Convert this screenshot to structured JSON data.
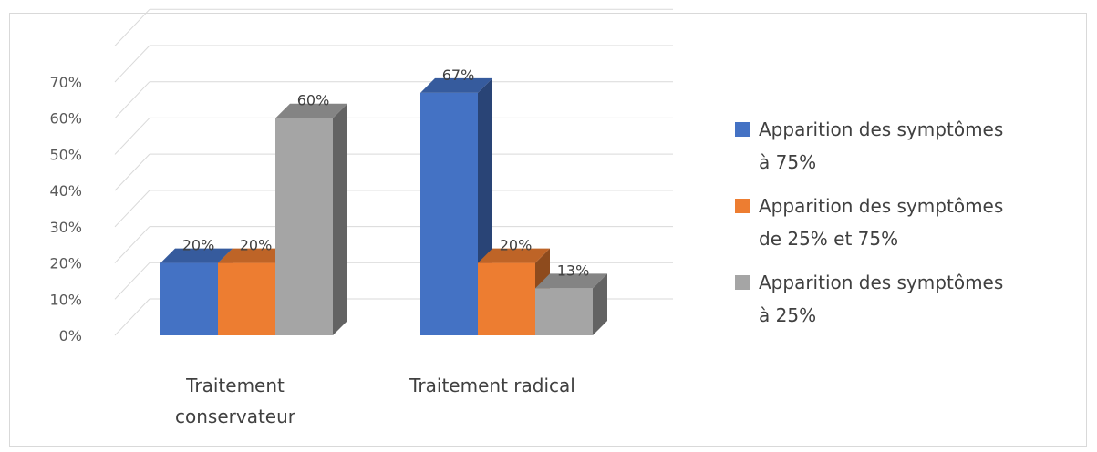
{
  "chart_data": {
    "type": "bar",
    "categories": [
      "Traitement\nconservateur",
      "Traitement radical"
    ],
    "series": [
      {
        "name": "Apparition des symptômes à 75%",
        "values": [
          20,
          67
        ],
        "labels": [
          "20%",
          "67%"
        ],
        "color": "#4472c4"
      },
      {
        "name": "Apparition des symptômes de 25% et 75%",
        "values": [
          20,
          20
        ],
        "labels": [
          "20%",
          "20%"
        ],
        "color": "#ed7d31"
      },
      {
        "name": "Apparition des symptômes à 25%",
        "values": [
          60,
          13
        ],
        "labels": [
          "60%",
          "13%"
        ],
        "color": "#a5a5a5"
      }
    ],
    "y_ticks": [
      "0%",
      "10%",
      "20%",
      "30%",
      "40%",
      "50%",
      "60%",
      "70%"
    ],
    "ylim": [
      0,
      80
    ],
    "grid": true,
    "legend_position": "right",
    "title": "",
    "xlabel": "",
    "ylabel": ""
  },
  "legend": {
    "items": [
      {
        "line1": "Apparition des symptômes",
        "line2": "à 75%",
        "color": "#4472c4"
      },
      {
        "line1": "Apparition des symptômes",
        "line2": "de 25% et 75%",
        "color": "#ed7d31"
      },
      {
        "line1": "Apparition des symptômes",
        "line2": "à 25%",
        "color": "#a5a5a5"
      }
    ]
  }
}
